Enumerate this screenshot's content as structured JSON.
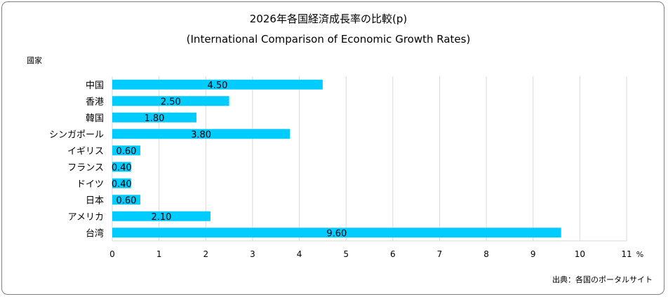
{
  "chart_data": {
    "type": "bar",
    "orientation": "horizontal",
    "title": "2026年各国経済成長率の比較(p)",
    "subtitle": "(International Comparison of Economic Growth Rates)",
    "ylabel": "國家",
    "xunit": "%",
    "source": "出典：各国のポータルサイト",
    "categories": [
      "中国",
      "香港",
      "韓国",
      "シンガポール",
      "イギリス",
      "フランス",
      "ドイツ",
      "日本",
      "アメリカ",
      "台湾"
    ],
    "values": [
      4.5,
      2.5,
      1.8,
      3.8,
      0.6,
      0.4,
      0.4,
      0.6,
      2.1,
      9.6
    ],
    "value_labels": [
      "4.50",
      "2.50",
      "1.80",
      "3.80",
      "0.60",
      "0.40",
      "0.40",
      "0.60",
      "2.10",
      "9.60"
    ],
    "xticks": [
      "0",
      "1",
      "2",
      "3",
      "4",
      "5",
      "6",
      "7",
      "8",
      "9",
      "10",
      "11"
    ],
    "xlim": [
      0,
      11
    ],
    "grid": true,
    "bar_color": "#00CCFF",
    "grid_color": "#D9D9D9"
  }
}
